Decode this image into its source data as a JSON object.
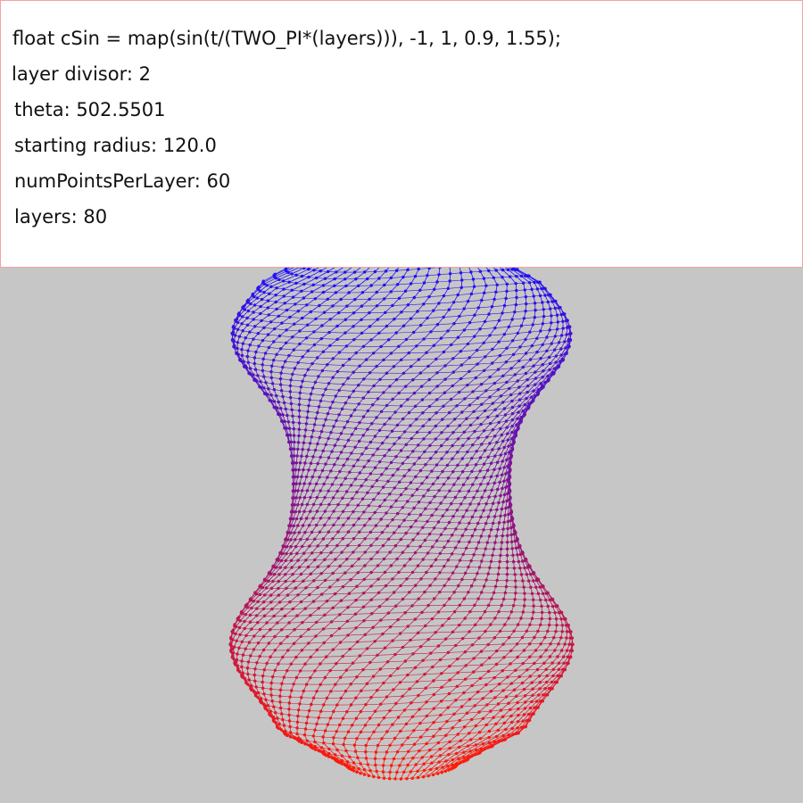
{
  "info": {
    "formula": "float cSin = map(sin(t/(TWO_PI*(layers))), -1, 1, 0.9, 1.55);",
    "layer_divisor": "layer divisor: 2",
    "theta": "theta: 502.5501",
    "starting_radius": "starting radius: 120.0",
    "num_points": "numPointsPerLayer: 60",
    "layers": "layers: 80"
  },
  "colors": {
    "background": "#c6c6c6",
    "panel": "#ffffff",
    "panel_border": "#f3a3a3",
    "top_color": "#1a10ff",
    "bottom_color": "#ff1a08"
  }
}
